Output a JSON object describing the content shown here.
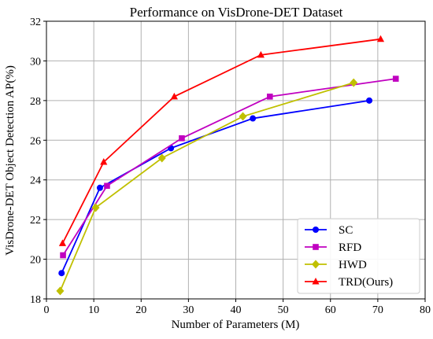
{
  "chart_data": {
    "type": "line",
    "title": "Performance on VisDrone-DET Dataset",
    "xlabel": "Number of Parameters (M)",
    "ylabel": "VisDrone-DET Object Detection AP(%)",
    "xlim": [
      0,
      80
    ],
    "ylim": [
      18,
      32
    ],
    "xticks": [
      0,
      10,
      20,
      30,
      40,
      50,
      60,
      70,
      80
    ],
    "yticks": [
      18,
      20,
      22,
      24,
      26,
      28,
      30,
      32
    ],
    "grid": true,
    "legend_position": "bottom-right",
    "series": [
      {
        "name": "SC",
        "color": "#0000ff",
        "marker": "circle",
        "x": [
          3.2,
          11.3,
          26.3,
          43.6,
          68.2
        ],
        "y": [
          19.3,
          23.6,
          25.6,
          27.1,
          28.0
        ]
      },
      {
        "name": "RFD",
        "color": "#c000c0",
        "marker": "square",
        "x": [
          3.5,
          12.8,
          28.6,
          47.2,
          73.8
        ],
        "y": [
          20.2,
          23.7,
          26.1,
          28.2,
          29.1
        ]
      },
      {
        "name": "HWD",
        "color": "#c0c000",
        "marker": "diamond",
        "x": [
          2.9,
          10.4,
          24.4,
          41.5,
          64.9
        ],
        "y": [
          18.4,
          22.6,
          25.1,
          27.2,
          28.9
        ]
      },
      {
        "name": "TRD(Ours)",
        "color": "#ff0000",
        "marker": "triangle",
        "x": [
          3.4,
          12.1,
          27.0,
          45.3,
          70.6
        ],
        "y": [
          20.8,
          24.9,
          28.2,
          30.3,
          31.1
        ]
      }
    ]
  }
}
